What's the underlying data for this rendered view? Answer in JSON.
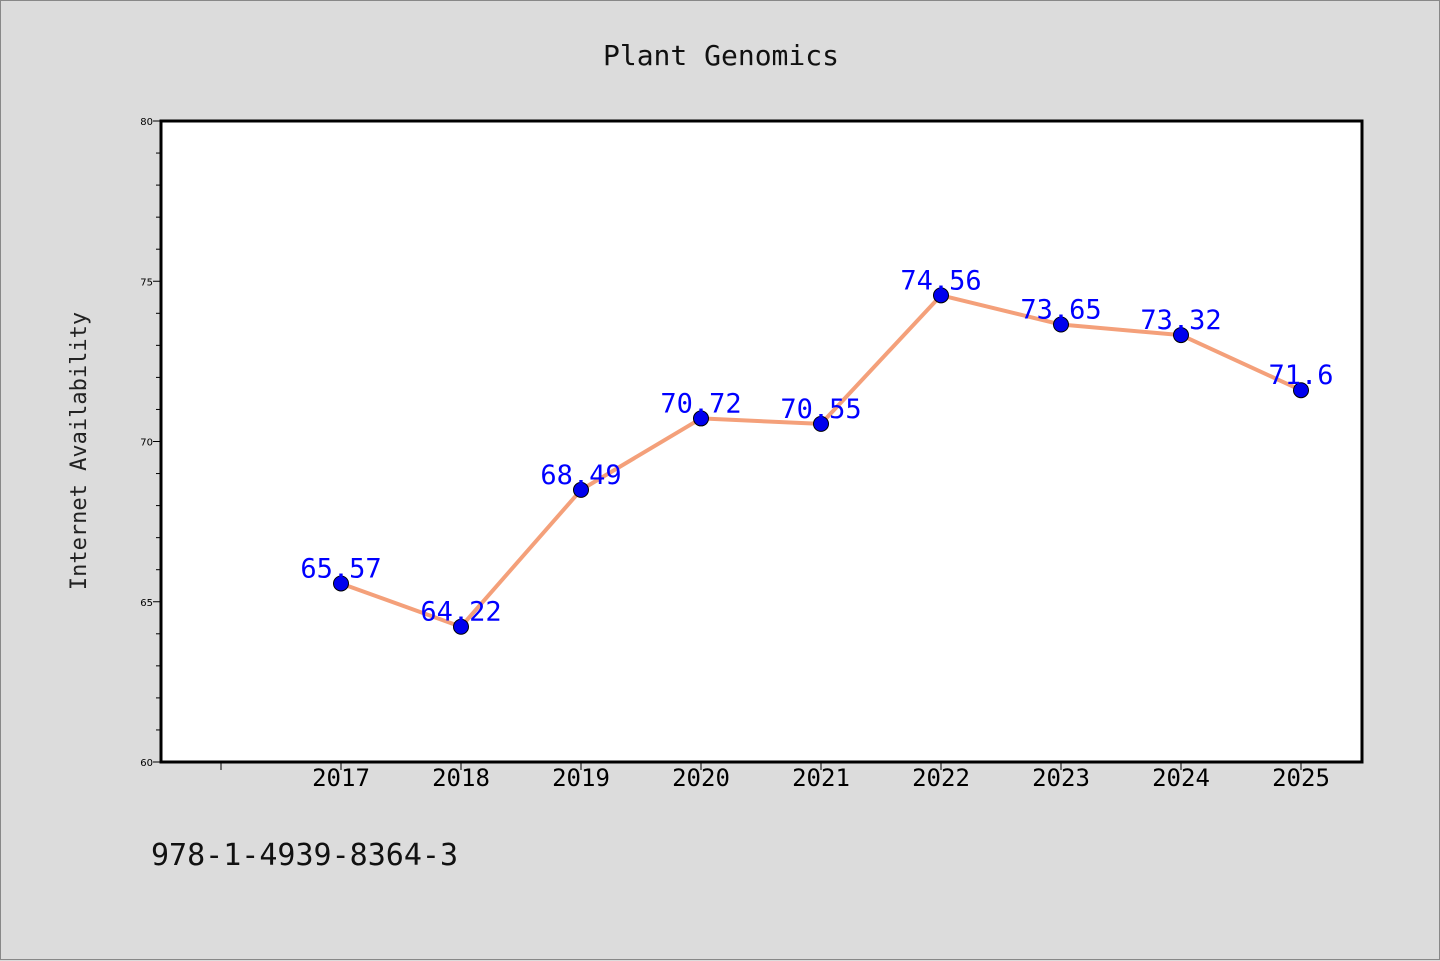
{
  "chart_data": {
    "type": "line",
    "title": "Plant Genomics",
    "xlabel": "",
    "ylabel": "Internet Availability",
    "categories": [
      "2017",
      "2018",
      "2019",
      "2020",
      "2021",
      "2022",
      "2023",
      "2024",
      "2025"
    ],
    "series": [
      {
        "values": [
          65.57,
          64.22,
          68.49,
          70.72,
          70.55,
          74.56,
          73.65,
          73.32,
          71.6
        ],
        "labels": [
          "65.57",
          "64.22",
          "68.49",
          "70.72",
          "70.55",
          "74.56",
          "73.65",
          "73.32",
          "71.6"
        ]
      }
    ],
    "ylim": [
      60,
      80
    ],
    "yticks": [
      "60",
      "65",
      "70",
      "75",
      "80"
    ],
    "grid": false,
    "legend": "none",
    "colors": {
      "line": "#f4a07a",
      "marker": "#0000ee",
      "label": "#0000ff",
      "background": "#dcdcdc",
      "plot_bg": "#ffffff"
    }
  },
  "footer": {
    "isbn": "978-1-4939-8364-3"
  }
}
